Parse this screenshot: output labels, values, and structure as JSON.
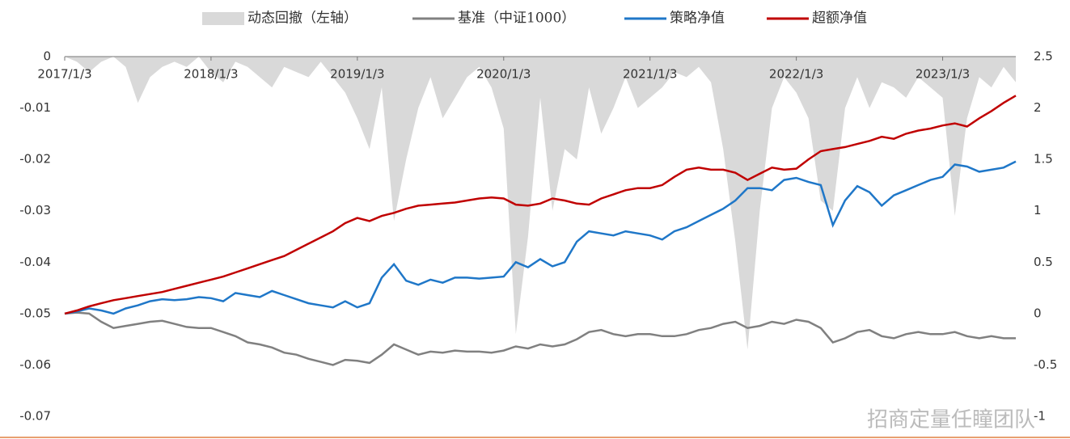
{
  "chart_data": {
    "type": "combo",
    "legend_position": "top",
    "watermark": "招商定量任瞳团队",
    "categories": [
      "2017/1/3",
      null,
      null,
      null,
      null,
      null,
      null,
      null,
      null,
      null,
      null,
      null,
      "2018/1/3",
      null,
      null,
      null,
      null,
      null,
      null,
      null,
      null,
      null,
      null,
      null,
      "2019/1/3",
      null,
      null,
      null,
      null,
      null,
      null,
      null,
      null,
      null,
      null,
      null,
      "2020/1/3",
      null,
      null,
      null,
      null,
      null,
      null,
      null,
      null,
      null,
      null,
      null,
      "2021/1/3",
      null,
      null,
      null,
      null,
      null,
      null,
      null,
      null,
      null,
      null,
      null,
      "2022/1/3",
      null,
      null,
      null,
      null,
      null,
      null,
      null,
      null,
      null,
      null,
      null,
      "2023/1/3",
      null,
      null,
      null,
      null,
      null,
      null
    ],
    "ylim": [
      -0.07,
      0
    ],
    "yticks": [
      0,
      -0.01,
      -0.02,
      -0.03,
      -0.04,
      -0.05,
      -0.06,
      -0.07
    ],
    "y2lim": [
      -1,
      2.5
    ],
    "y2ticks": [
      2.5,
      2,
      1.5,
      1,
      0.5,
      0,
      -0.5,
      -1
    ],
    "series": [
      {
        "name": "动态回撤（左轴）",
        "kind": "area",
        "color": "#d9d9d9",
        "values": [
          0,
          -0.001,
          -0.003,
          -0.001,
          0,
          -0.002,
          -0.009,
          -0.004,
          -0.002,
          -0.001,
          -0.002,
          0,
          -0.003,
          -0.005,
          -0.001,
          -0.002,
          -0.004,
          -0.006,
          -0.002,
          -0.003,
          -0.004,
          -0.001,
          -0.004,
          -0.007,
          -0.012,
          -0.018,
          -0.006,
          -0.032,
          -0.02,
          -0.01,
          -0.004,
          -0.012,
          -0.008,
          -0.004,
          -0.002,
          -0.006,
          -0.014,
          -0.054,
          -0.035,
          -0.008,
          -0.03,
          -0.018,
          -0.02,
          -0.006,
          -0.015,
          -0.01,
          -0.004,
          -0.01,
          -0.008,
          -0.006,
          -0.003,
          -0.004,
          -0.002,
          -0.005,
          -0.018,
          -0.036,
          -0.057,
          -0.03,
          -0.01,
          -0.004,
          -0.007,
          -0.012,
          -0.028,
          -0.03,
          -0.01,
          -0.004,
          -0.01,
          -0.005,
          -0.006,
          -0.008,
          -0.004,
          -0.006,
          -0.008,
          -0.031,
          -0.012,
          -0.004,
          -0.006,
          -0.002,
          -0.005
        ]
      },
      {
        "name": "基准（中证1000）",
        "kind": "line",
        "axis": "y2",
        "color": "#808080",
        "values": [
          0,
          0.01,
          0,
          -0.08,
          -0.14,
          -0.12,
          -0.1,
          -0.08,
          -0.07,
          -0.1,
          -0.13,
          -0.14,
          -0.14,
          -0.18,
          -0.22,
          -0.28,
          -0.3,
          -0.33,
          -0.38,
          -0.4,
          -0.44,
          -0.47,
          -0.5,
          -0.45,
          -0.46,
          -0.48,
          -0.4,
          -0.3,
          -0.35,
          -0.4,
          -0.37,
          -0.38,
          -0.36,
          -0.37,
          -0.37,
          -0.38,
          -0.36,
          -0.32,
          -0.34,
          -0.3,
          -0.32,
          -0.3,
          -0.25,
          -0.18,
          -0.16,
          -0.2,
          -0.22,
          -0.2,
          -0.2,
          -0.22,
          -0.22,
          -0.2,
          -0.16,
          -0.14,
          -0.1,
          -0.08,
          -0.14,
          -0.12,
          -0.08,
          -0.1,
          -0.06,
          -0.08,
          -0.14,
          -0.28,
          -0.24,
          -0.18,
          -0.16,
          -0.22,
          -0.24,
          -0.2,
          -0.18,
          -0.2,
          -0.2,
          -0.18,
          -0.22,
          -0.24,
          -0.22,
          -0.24,
          -0.24
        ]
      },
      {
        "name": "策略净值",
        "kind": "line",
        "axis": "y2",
        "color": "#1f77c8",
        "values": [
          0,
          0.02,
          0.05,
          0.03,
          0,
          0.05,
          0.08,
          0.12,
          0.14,
          0.13,
          0.14,
          0.16,
          0.15,
          0.12,
          0.2,
          0.18,
          0.16,
          0.22,
          0.18,
          0.14,
          0.1,
          0.08,
          0.06,
          0.12,
          0.06,
          0.1,
          0.35,
          0.48,
          0.32,
          0.28,
          0.33,
          0.3,
          0.35,
          0.35,
          0.34,
          0.35,
          0.36,
          0.5,
          0.45,
          0.53,
          0.46,
          0.5,
          0.7,
          0.8,
          0.78,
          0.76,
          0.8,
          0.78,
          0.76,
          0.72,
          0.8,
          0.84,
          0.9,
          0.96,
          1.02,
          1.1,
          1.22,
          1.22,
          1.2,
          1.3,
          1.32,
          1.28,
          1.25,
          0.86,
          1.1,
          1.24,
          1.18,
          1.05,
          1.15,
          1.2,
          1.25,
          1.3,
          1.33,
          1.45,
          1.43,
          1.38,
          1.4,
          1.42,
          1.48
        ]
      },
      {
        "name": "超额净值",
        "kind": "line",
        "axis": "y2",
        "color": "#c00000",
        "values": [
          0,
          0.03,
          0.07,
          0.1,
          0.13,
          0.15,
          0.17,
          0.19,
          0.21,
          0.24,
          0.27,
          0.3,
          0.33,
          0.36,
          0.4,
          0.44,
          0.48,
          0.52,
          0.56,
          0.62,
          0.68,
          0.74,
          0.8,
          0.88,
          0.93,
          0.9,
          0.95,
          0.98,
          1.02,
          1.05,
          1.06,
          1.07,
          1.08,
          1.1,
          1.12,
          1.13,
          1.12,
          1.06,
          1.05,
          1.07,
          1.12,
          1.1,
          1.07,
          1.06,
          1.12,
          1.16,
          1.2,
          1.22,
          1.22,
          1.25,
          1.33,
          1.4,
          1.42,
          1.4,
          1.4,
          1.37,
          1.3,
          1.36,
          1.42,
          1.4,
          1.41,
          1.5,
          1.58,
          1.6,
          1.62,
          1.65,
          1.68,
          1.72,
          1.7,
          1.75,
          1.78,
          1.8,
          1.83,
          1.85,
          1.82,
          1.9,
          1.97,
          2.05,
          2.12
        ]
      }
    ]
  }
}
